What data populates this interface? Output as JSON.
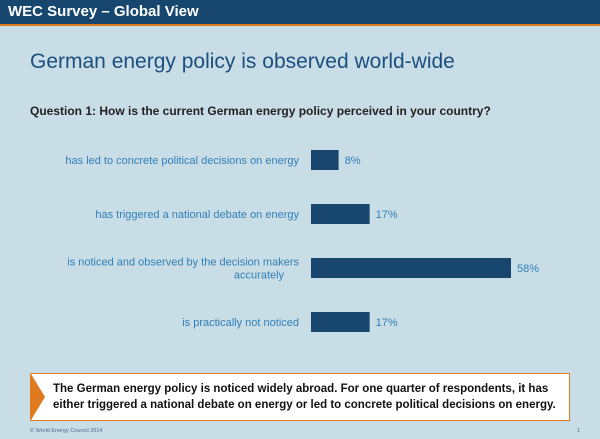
{
  "header": {
    "title": "WEC Survey – Global View"
  },
  "slide": {
    "title": "German energy policy is observed world-wide",
    "question": "Question 1:  How is the current German energy policy perceived in your country?"
  },
  "chart_data": {
    "type": "bar",
    "orientation": "horizontal",
    "categories": [
      [
        "has led to concrete political decisions on energy"
      ],
      [
        "has triggered a national debate on energy"
      ],
      [
        "is noticed and observed by the decision makers",
        "accurately"
      ],
      [
        "is practically not noticed"
      ]
    ],
    "values": [
      8,
      17,
      58,
      17
    ],
    "value_labels": [
      "8%",
      "17%",
      "58%",
      "17%"
    ],
    "unit": "%",
    "xlim": [
      0,
      58
    ],
    "grid": false,
    "bar_color": "#17466f",
    "category_color": "#2f7fb8",
    "value_label_color": "#2f7fb8"
  },
  "callout": {
    "text": "The German energy policy is noticed widely abroad. For one quarter of respondents, it has either triggered a national debate on energy or led to concrete political decisions on energy."
  },
  "footer": {
    "copyright": "© World Energy Council 2014",
    "page_number": "1"
  },
  "colors": {
    "background": "#c9dde6",
    "header": "#17466f",
    "accent": "#e07a1f",
    "title": "#1b4f7f"
  }
}
